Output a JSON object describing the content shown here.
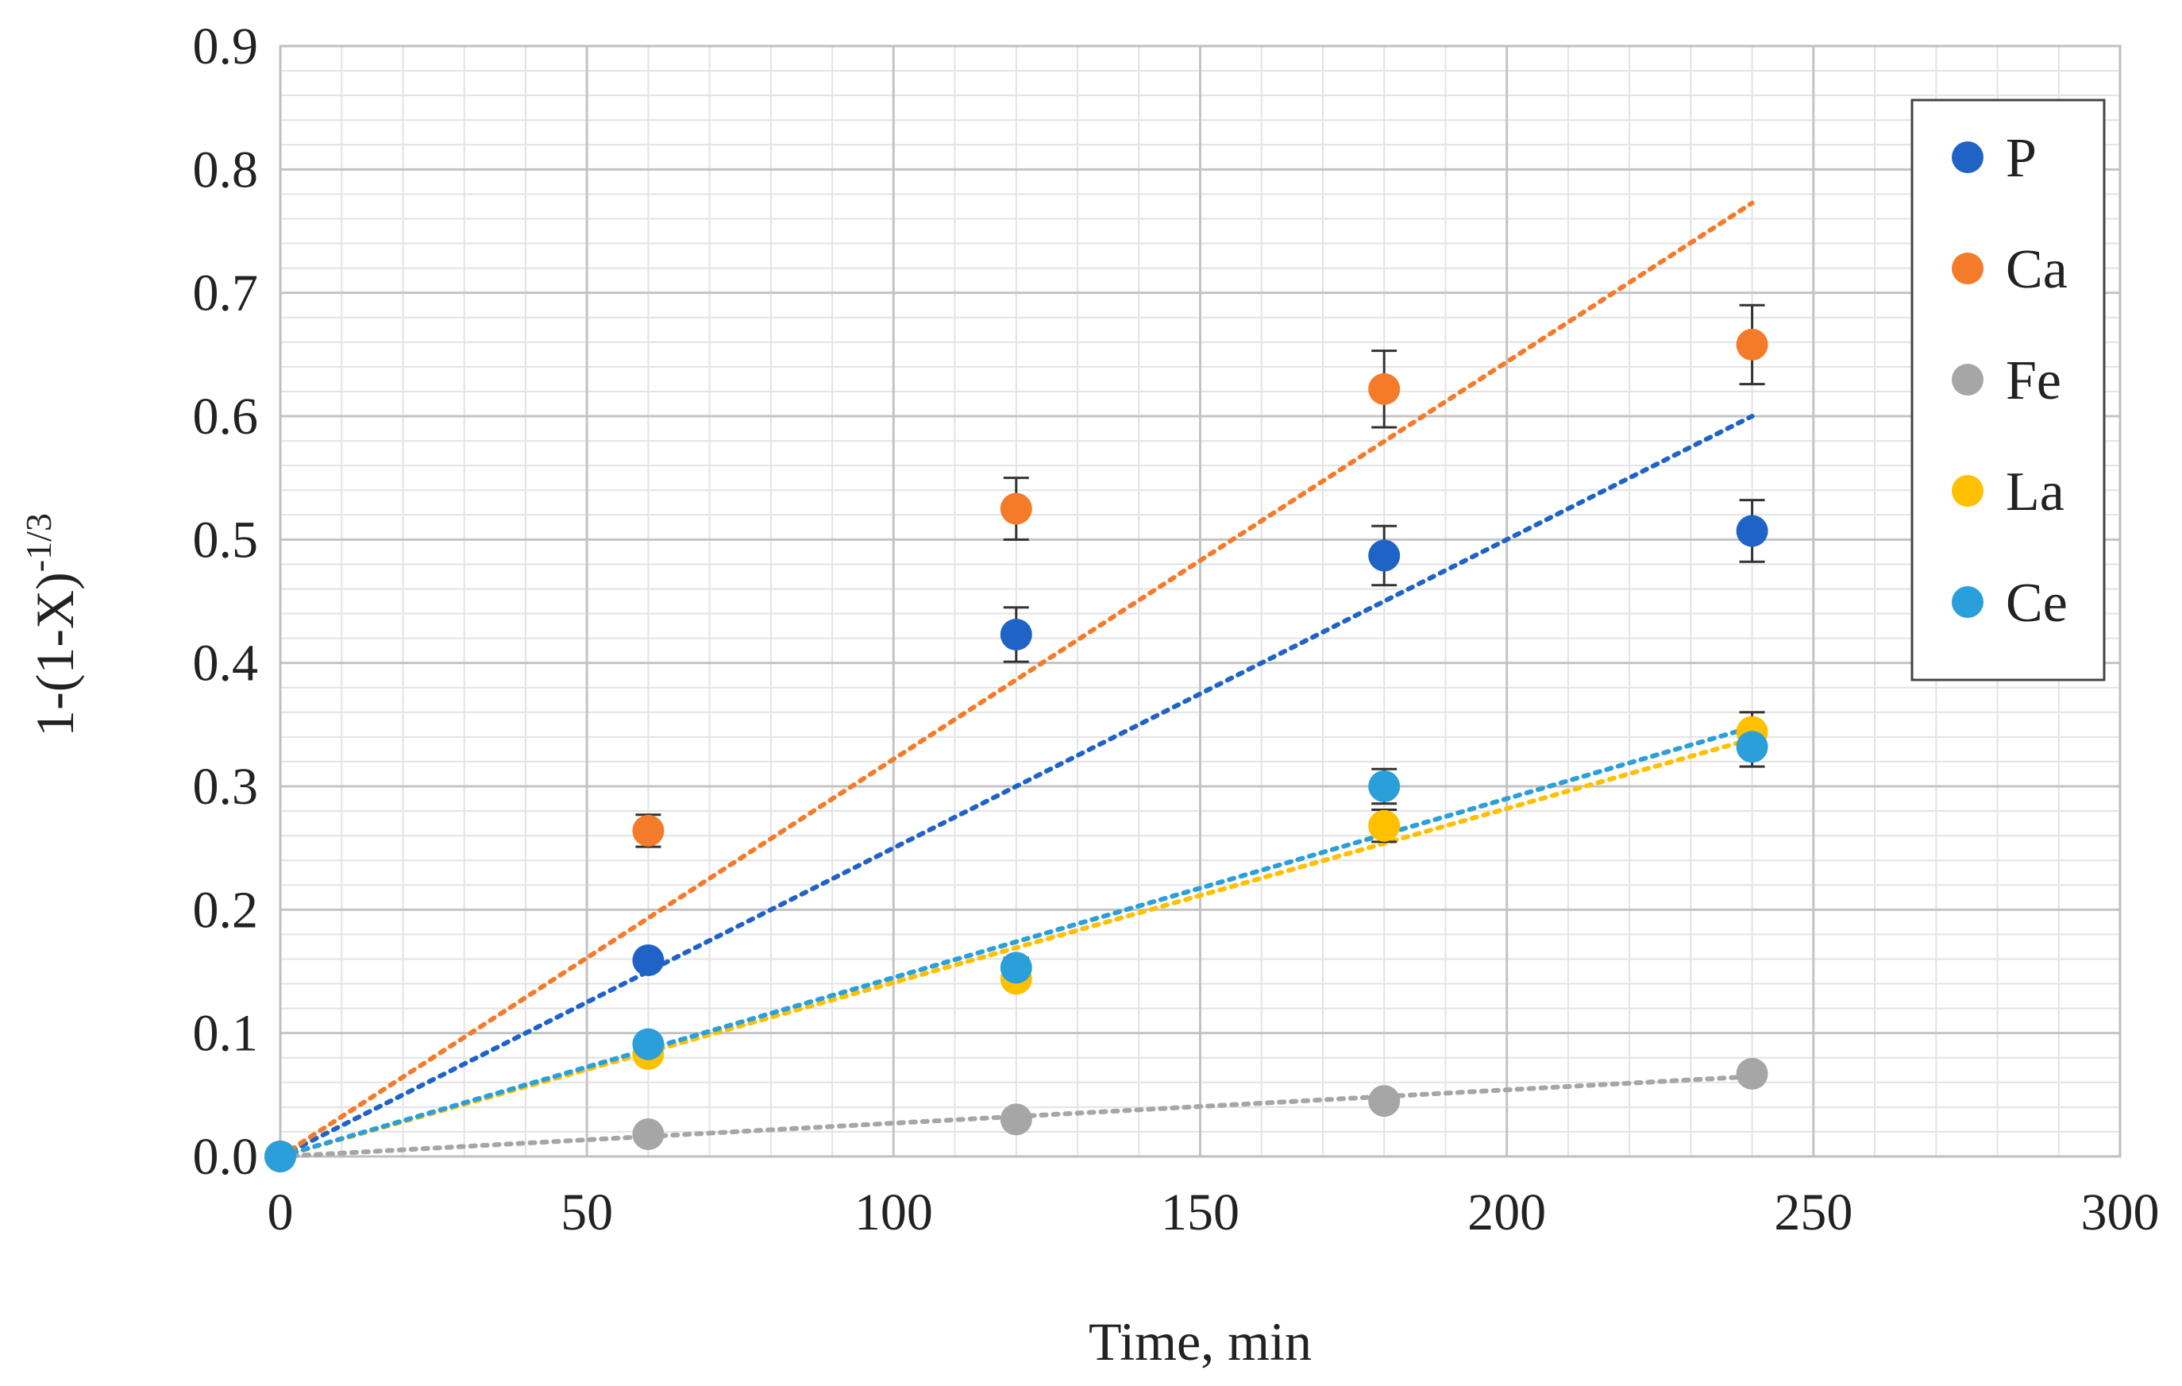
{
  "chart_data": {
    "type": "scatter",
    "title": "",
    "xlabel": "Time, min",
    "ylabel": "1-(1-X)",
    "ylabel_superscript": "-1/3",
    "xlim": [
      0,
      300
    ],
    "ylim": [
      0,
      0.9
    ],
    "x_ticks": [
      0,
      50,
      100,
      150,
      200,
      250,
      300
    ],
    "x_tick_labels": [
      "0",
      "50",
      "100",
      "150",
      "200",
      "250",
      "300"
    ],
    "y_ticks": [
      0,
      0.1,
      0.2,
      0.3,
      0.4,
      0.5,
      0.6,
      0.7,
      0.8,
      0.9
    ],
    "y_tick_labels": [
      "0.0",
      "0.1",
      "0.2",
      "0.3",
      "0.4",
      "0.5",
      "0.6",
      "0.7",
      "0.8",
      "0.9"
    ],
    "x_minor_step": 10,
    "y_minor_step": 0.02,
    "grid": true,
    "legend_position": "top-right",
    "x": [
      0,
      60,
      120,
      180,
      240
    ],
    "series": [
      {
        "name": "P",
        "color": "#1f63c6",
        "values": [
          0,
          0.159,
          0.423,
          0.487,
          0.507
        ],
        "errors": [
          0,
          0.006,
          0.022,
          0.024,
          0.025
        ],
        "trend_slope": 0.0025
      },
      {
        "name": "Ca",
        "color": "#f47b2a",
        "values": [
          0,
          0.264,
          0.525,
          0.622,
          0.658
        ],
        "errors": [
          0,
          0.013,
          0.025,
          0.031,
          0.032
        ],
        "trend_slope": 0.00322
      },
      {
        "name": "Fe",
        "color": "#a6a6a6",
        "values": [
          0,
          0.018,
          0.03,
          0.045,
          0.067
        ],
        "errors": [
          0,
          0,
          0,
          0,
          0
        ],
        "trend_slope": 0.00027
      },
      {
        "name": "La",
        "color": "#ffc000",
        "values": [
          0,
          0.083,
          0.144,
          0.268,
          0.344
        ],
        "errors": [
          0,
          0.004,
          0.007,
          0.013,
          0.016
        ],
        "trend_slope": 0.00141
      },
      {
        "name": "Ce",
        "color": "#2b9fd9",
        "values": [
          0,
          0.091,
          0.153,
          0.3,
          0.332
        ],
        "errors": [
          0,
          0.005,
          0.008,
          0.014,
          0.016
        ],
        "trend_slope": 0.00145
      }
    ]
  }
}
